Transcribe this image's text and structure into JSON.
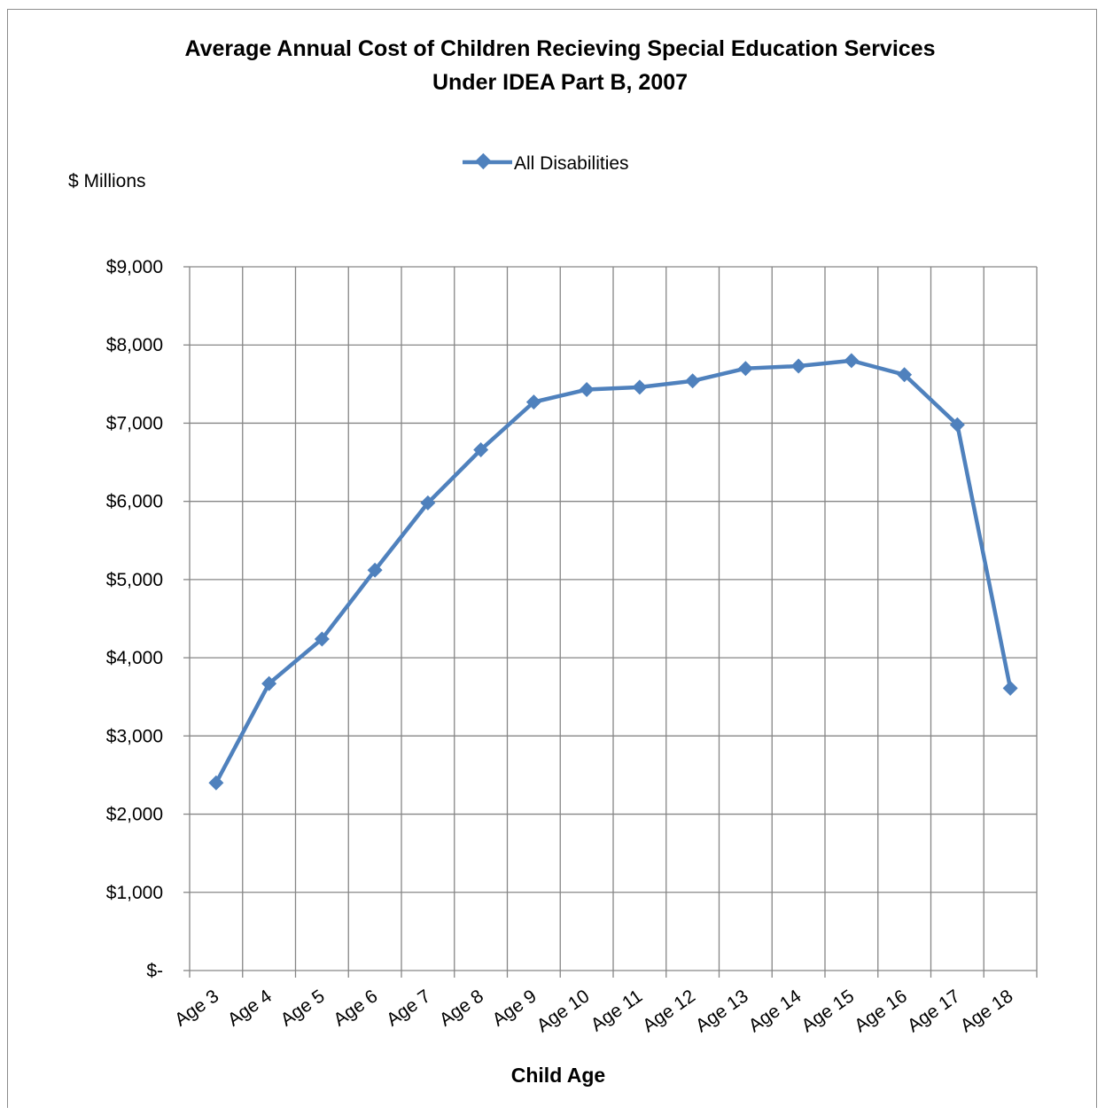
{
  "chart_data": {
    "type": "line",
    "title_line1": "Average Annual Cost of Children Recieving Special Education Services",
    "title_line2": "Under IDEA Part B, 2007",
    "ylabel": "$ Millions",
    "xlabel": "Child Age",
    "ylim": [
      0,
      9000
    ],
    "yticks": [
      {
        "value": 0,
        "label": "$-"
      },
      {
        "value": 1000,
        "label": "$1,000"
      },
      {
        "value": 2000,
        "label": "$2,000"
      },
      {
        "value": 3000,
        "label": "$3,000"
      },
      {
        "value": 4000,
        "label": "$4,000"
      },
      {
        "value": 5000,
        "label": "$5,000"
      },
      {
        "value": 6000,
        "label": "$6,000"
      },
      {
        "value": 7000,
        "label": "$7,000"
      },
      {
        "value": 8000,
        "label": "$8,000"
      },
      {
        "value": 9000,
        "label": "$9,000"
      }
    ],
    "categories": [
      "Age 3",
      "Age 4",
      "Age 5",
      "Age 6",
      "Age 7",
      "Age 8",
      "Age 9",
      "Age 10",
      "Age 11",
      "Age 12",
      "Age 13",
      "Age 14",
      "Age 15",
      "Age 16",
      "Age 17",
      "Age 18"
    ],
    "series": [
      {
        "name": "All Disabilities",
        "color": "#4f81bd",
        "values": [
          2400,
          3670,
          4240,
          5120,
          5980,
          6660,
          7270,
          7430,
          7460,
          7540,
          7700,
          7730,
          7800,
          7620,
          6980,
          3610
        ]
      }
    ],
    "grid": true,
    "legend_position": "top-center"
  }
}
